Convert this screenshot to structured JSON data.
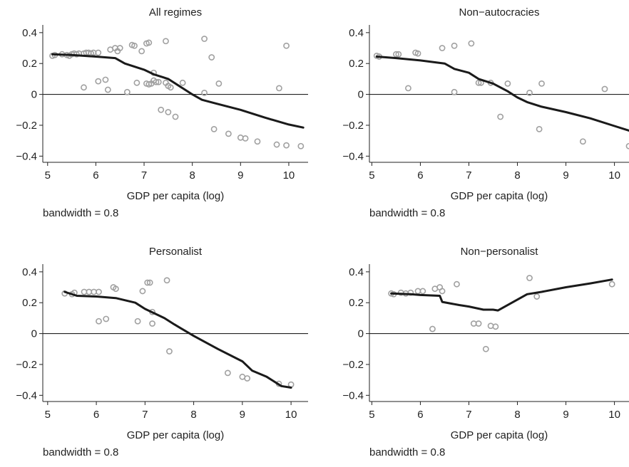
{
  "chart_data": [
    {
      "type": "scatter",
      "title": "All regimes",
      "xlabel": "GDP per capita (log)",
      "ylabel": "",
      "note": "bandwidth = 0.8",
      "xlim": [
        4.9,
        10.4
      ],
      "ylim": [
        -0.44,
        0.45
      ],
      "xticks": [
        5,
        6,
        7,
        8,
        9,
        10
      ],
      "yticks": [
        0.4,
        0.2,
        0,
        -0.2,
        -0.4
      ],
      "ytick_labels": [
        "0.4",
        "0.2",
        "0",
        "−0.2",
        "−0.4"
      ],
      "zero_line": true,
      "grid": false,
      "colors": {
        "points": "#a0a0a0",
        "line": "#1a1a1a"
      },
      "series": [
        {
          "type": "scatter",
          "points": [
            [
              5.1,
              0.25
            ],
            [
              5.15,
              0.255
            ],
            [
              5.3,
              0.26
            ],
            [
              5.4,
              0.255
            ],
            [
              5.45,
              0.25
            ],
            [
              5.5,
              0.26
            ],
            [
              5.55,
              0.265
            ],
            [
              5.6,
              0.26
            ],
            [
              5.65,
              0.265
            ],
            [
              5.75,
              0.265
            ],
            [
              5.8,
              0.27
            ],
            [
              5.85,
              0.27
            ],
            [
              5.9,
              0.265
            ],
            [
              5.95,
              0.27
            ],
            [
              6.05,
              0.27
            ],
            [
              6.3,
              0.29
            ],
            [
              6.4,
              0.3
            ],
            [
              6.45,
              0.28
            ],
            [
              6.5,
              0.3
            ],
            [
              6.75,
              0.32
            ],
            [
              6.8,
              0.315
            ],
            [
              6.95,
              0.28
            ],
            [
              7.05,
              0.33
            ],
            [
              7.1,
              0.335
            ],
            [
              7.45,
              0.345
            ],
            [
              8.25,
              0.36
            ],
            [
              9.95,
              0.315
            ],
            [
              8.4,
              0.24
            ],
            [
              5.75,
              0.045
            ],
            [
              6.05,
              0.085
            ],
            [
              6.2,
              0.095
            ],
            [
              6.25,
              0.03
            ],
            [
              6.65,
              0.015
            ],
            [
              6.85,
              0.075
            ],
            [
              7.05,
              0.07
            ],
            [
              7.1,
              0.065
            ],
            [
              7.15,
              0.07
            ],
            [
              7.2,
              0.14
            ],
            [
              7.2,
              0.09
            ],
            [
              7.25,
              0.08
            ],
            [
              7.3,
              0.08
            ],
            [
              7.45,
              0.075
            ],
            [
              7.5,
              0.055
            ],
            [
              7.55,
              0.045
            ],
            [
              7.8,
              0.075
            ],
            [
              8.25,
              0.01
            ],
            [
              8.55,
              0.07
            ],
            [
              9.8,
              0.04
            ],
            [
              7.35,
              -0.1
            ],
            [
              7.5,
              -0.115
            ],
            [
              7.65,
              -0.145
            ],
            [
              8.45,
              -0.225
            ],
            [
              8.75,
              -0.255
            ],
            [
              9.0,
              -0.28
            ],
            [
              9.1,
              -0.285
            ],
            [
              9.35,
              -0.305
            ],
            [
              9.75,
              -0.325
            ],
            [
              9.95,
              -0.33
            ],
            [
              10.25,
              -0.335
            ]
          ]
        },
        {
          "type": "line",
          "points": [
            [
              5.1,
              0.26
            ],
            [
              5.5,
              0.255
            ],
            [
              6.0,
              0.245
            ],
            [
              6.4,
              0.235
            ],
            [
              6.6,
              0.2
            ],
            [
              6.8,
              0.18
            ],
            [
              7.0,
              0.16
            ],
            [
              7.2,
              0.13
            ],
            [
              7.4,
              0.11
            ],
            [
              7.5,
              0.1
            ],
            [
              7.8,
              0.04
            ],
            [
              8.0,
              0.0
            ],
            [
              8.2,
              -0.035
            ],
            [
              8.5,
              -0.06
            ],
            [
              9.0,
              -0.1
            ],
            [
              9.5,
              -0.15
            ],
            [
              10.0,
              -0.195
            ],
            [
              10.3,
              -0.215
            ]
          ]
        }
      ]
    },
    {
      "type": "scatter",
      "title": "Non−autocracies",
      "xlabel": "GDP per capita (log)",
      "ylabel": "",
      "note": "bandwidth = 0.8",
      "xlim": [
        4.95,
        10.3
      ],
      "ylim": [
        -0.44,
        0.45
      ],
      "xticks": [
        5,
        6,
        7,
        8,
        9,
        10
      ],
      "yticks": [
        0.4,
        0.2,
        0,
        -0.2,
        -0.4
      ],
      "ytick_labels": [
        "0.4",
        "0.2",
        "0",
        "−0.2",
        "−0.4"
      ],
      "zero_line": true,
      "grid": false,
      "colors": {
        "points": "#a0a0a0",
        "line": "#1a1a1a"
      },
      "series": [
        {
          "type": "scatter",
          "points": [
            [
              5.1,
              0.25
            ],
            [
              5.15,
              0.245
            ],
            [
              5.5,
              0.26
            ],
            [
              5.55,
              0.26
            ],
            [
              5.9,
              0.27
            ],
            [
              5.95,
              0.265
            ],
            [
              6.45,
              0.3
            ],
            [
              6.7,
              0.315
            ],
            [
              7.05,
              0.33
            ],
            [
              5.75,
              0.04
            ],
            [
              6.7,
              0.015
            ],
            [
              7.2,
              0.075
            ],
            [
              7.25,
              0.075
            ],
            [
              7.45,
              0.075
            ],
            [
              7.8,
              0.07
            ],
            [
              8.25,
              0.01
            ],
            [
              8.5,
              0.07
            ],
            [
              9.8,
              0.035
            ],
            [
              7.65,
              -0.145
            ],
            [
              8.45,
              -0.225
            ],
            [
              9.35,
              -0.305
            ],
            [
              10.3,
              -0.335
            ]
          ]
        },
        {
          "type": "line",
          "points": [
            [
              5.1,
              0.245
            ],
            [
              5.5,
              0.235
            ],
            [
              6.0,
              0.22
            ],
            [
              6.5,
              0.2
            ],
            [
              6.7,
              0.165
            ],
            [
              7.0,
              0.14
            ],
            [
              7.2,
              0.1
            ],
            [
              7.5,
              0.07
            ],
            [
              7.8,
              0.02
            ],
            [
              8.0,
              -0.02
            ],
            [
              8.2,
              -0.05
            ],
            [
              8.5,
              -0.08
            ],
            [
              9.0,
              -0.115
            ],
            [
              9.5,
              -0.155
            ],
            [
              10.0,
              -0.205
            ],
            [
              10.3,
              -0.235
            ]
          ]
        }
      ]
    },
    {
      "type": "scatter",
      "title": "Personalist",
      "xlabel": "GDP per capita (log)",
      "ylabel": "",
      "note": "bandwidth = 0.8",
      "xlim": [
        4.9,
        10.35
      ],
      "ylim": [
        -0.44,
        0.45
      ],
      "xticks": [
        5,
        6,
        7,
        8,
        9,
        10
      ],
      "yticks": [
        0.4,
        0.2,
        0,
        -0.2,
        -0.4
      ],
      "ytick_labels": [
        "0.4",
        "0.2",
        "0",
        "−0.2",
        "−0.4"
      ],
      "zero_line": true,
      "grid": false,
      "colors": {
        "points": "#a0a0a0",
        "line": "#1a1a1a"
      },
      "series": [
        {
          "type": "scatter",
          "points": [
            [
              5.35,
              0.26
            ],
            [
              5.5,
              0.255
            ],
            [
              5.55,
              0.265
            ],
            [
              5.75,
              0.27
            ],
            [
              5.85,
              0.27
            ],
            [
              5.95,
              0.27
            ],
            [
              6.05,
              0.27
            ],
            [
              6.35,
              0.3
            ],
            [
              6.4,
              0.29
            ],
            [
              6.95,
              0.275
            ],
            [
              7.05,
              0.33
            ],
            [
              7.1,
              0.33
            ],
            [
              7.45,
              0.345
            ],
            [
              6.05,
              0.08
            ],
            [
              6.2,
              0.095
            ],
            [
              6.85,
              0.08
            ],
            [
              7.15,
              0.14
            ],
            [
              7.15,
              0.065
            ],
            [
              7.5,
              -0.115
            ],
            [
              8.7,
              -0.255
            ],
            [
              9.0,
              -0.28
            ],
            [
              9.1,
              -0.29
            ],
            [
              9.75,
              -0.325
            ],
            [
              10.0,
              -0.33
            ]
          ]
        },
        {
          "type": "line",
          "points": [
            [
              5.35,
              0.27
            ],
            [
              5.6,
              0.245
            ],
            [
              6.0,
              0.24
            ],
            [
              6.4,
              0.23
            ],
            [
              6.8,
              0.2
            ],
            [
              7.0,
              0.16
            ],
            [
              7.2,
              0.13
            ],
            [
              7.4,
              0.1
            ],
            [
              7.6,
              0.06
            ],
            [
              8.0,
              -0.015
            ],
            [
              8.5,
              -0.1
            ],
            [
              9.0,
              -0.18
            ],
            [
              9.2,
              -0.24
            ],
            [
              9.5,
              -0.28
            ],
            [
              9.8,
              -0.34
            ],
            [
              10.0,
              -0.35
            ]
          ]
        }
      ]
    },
    {
      "type": "scatter",
      "title": "Non−personalist",
      "xlabel": "GDP per capita (log)",
      "ylabel": "",
      "note": "bandwidth = 0.8",
      "xlim": [
        4.95,
        10.3
      ],
      "ylim": [
        -0.44,
        0.45
      ],
      "xticks": [
        5,
        6,
        7,
        8,
        9,
        10
      ],
      "yticks": [
        0.4,
        0.2,
        0,
        -0.2,
        -0.4
      ],
      "ytick_labels": [
        "0.4",
        "0.2",
        "0",
        "−0.2",
        "−0.4"
      ],
      "zero_line": true,
      "grid": false,
      "colors": {
        "points": "#a0a0a0",
        "line": "#1a1a1a"
      },
      "series": [
        {
          "type": "scatter",
          "points": [
            [
              5.4,
              0.26
            ],
            [
              5.45,
              0.255
            ],
            [
              5.6,
              0.265
            ],
            [
              5.7,
              0.26
            ],
            [
              5.8,
              0.265
            ],
            [
              5.95,
              0.275
            ],
            [
              6.05,
              0.275
            ],
            [
              6.3,
              0.29
            ],
            [
              6.4,
              0.3
            ],
            [
              6.45,
              0.275
            ],
            [
              6.75,
              0.32
            ],
            [
              8.25,
              0.36
            ],
            [
              9.95,
              0.32
            ],
            [
              8.4,
              0.24
            ],
            [
              6.25,
              0.03
            ],
            [
              7.1,
              0.065
            ],
            [
              7.2,
              0.065
            ],
            [
              7.45,
              0.05
            ],
            [
              7.55,
              0.045
            ],
            [
              7.35,
              -0.1
            ]
          ]
        },
        {
          "type": "line",
          "points": [
            [
              5.4,
              0.26
            ],
            [
              5.8,
              0.255
            ],
            [
              6.0,
              0.25
            ],
            [
              6.4,
              0.245
            ],
            [
              6.45,
              0.205
            ],
            [
              6.8,
              0.185
            ],
            [
              7.0,
              0.175
            ],
            [
              7.3,
              0.155
            ],
            [
              7.5,
              0.155
            ],
            [
              7.6,
              0.15
            ],
            [
              8.2,
              0.255
            ],
            [
              8.5,
              0.27
            ],
            [
              9.0,
              0.3
            ],
            [
              9.5,
              0.325
            ],
            [
              9.95,
              0.35
            ]
          ]
        }
      ]
    }
  ]
}
